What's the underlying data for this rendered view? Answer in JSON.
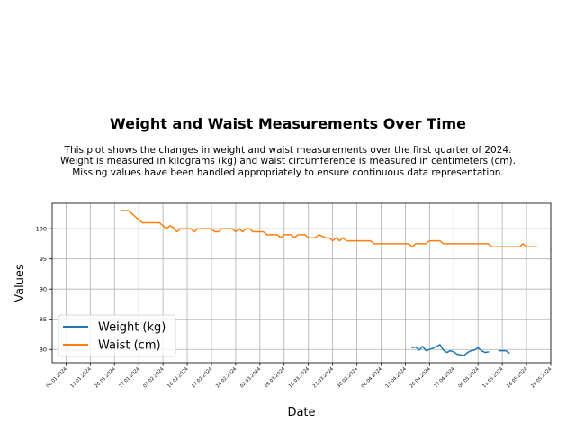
{
  "chart_data": {
    "type": "line",
    "title": "Weight and Waist Measurements Over Time",
    "subtitle_lines": [
      "This plot shows the changes in weight and waist measurements over the first quarter of 2024.",
      "Weight is measured in kilograms (kg) and waist circumference is measured in centimeters (cm).",
      "Missing values have been handled appropriately to ensure continuous data representation."
    ],
    "xlabel": "Date",
    "ylabel": "Values",
    "xlim": [
      "2024-01-02",
      "2024-05-25"
    ],
    "ylim": [
      77.8,
      104.2
    ],
    "x_ticks": [
      "06.01.2024",
      "13.01.2024",
      "20.01.2024",
      "27.01.2024",
      "03.02.2024",
      "10.02.2024",
      "17.02.2024",
      "24.02.2024",
      "02.03.2024",
      "09.03.2024",
      "16.03.2024",
      "23.03.2024",
      "30.03.2024",
      "06.04.2024",
      "13.04.2024",
      "20.04.2024",
      "27.04.2024",
      "04.05.2024",
      "11.05.2024",
      "18.05.2024",
      "25.05.2024"
    ],
    "y_ticks": [
      80,
      85,
      90,
      95,
      100
    ],
    "grid": true,
    "legend_position": "lower-left",
    "series": [
      {
        "name": "Weight (kg)",
        "color": "#1f77b4",
        "segments": [
          [
            {
              "x": "2024-04-15",
              "y": 80.3
            },
            {
              "x": "2024-04-16",
              "y": 80.4
            },
            {
              "x": "2024-04-17",
              "y": 79.9
            },
            {
              "x": "2024-04-18",
              "y": 80.5
            },
            {
              "x": "2024-04-19",
              "y": 79.8
            },
            {
              "x": "2024-04-21",
              "y": 80.2
            },
            {
              "x": "2024-04-23",
              "y": 80.8
            },
            {
              "x": "2024-04-24",
              "y": 79.9
            },
            {
              "x": "2024-04-25",
              "y": 79.5
            },
            {
              "x": "2024-04-26",
              "y": 79.8
            },
            {
              "x": "2024-04-27",
              "y": 79.6
            },
            {
              "x": "2024-04-28",
              "y": 79.2
            },
            {
              "x": "2024-04-30",
              "y": 79.0
            },
            {
              "x": "2024-05-01",
              "y": 79.5
            },
            {
              "x": "2024-05-02",
              "y": 79.8
            },
            {
              "x": "2024-05-03",
              "y": 79.9
            },
            {
              "x": "2024-05-04",
              "y": 80.3
            },
            {
              "x": "2024-05-05",
              "y": 79.8
            },
            {
              "x": "2024-05-06",
              "y": 79.5
            },
            {
              "x": "2024-05-07",
              "y": 79.6
            }
          ],
          [
            {
              "x": "2024-05-10",
              "y": 79.8
            },
            {
              "x": "2024-05-12",
              "y": 79.8
            },
            {
              "x": "2024-05-13",
              "y": 79.4
            }
          ]
        ]
      },
      {
        "name": "Waist (cm)",
        "color": "#ff7f0e",
        "segments": [
          [
            {
              "x": "2024-01-22",
              "y": 103
            },
            {
              "x": "2024-01-24",
              "y": 103
            },
            {
              "x": "2024-01-28",
              "y": 101
            },
            {
              "x": "2024-02-02",
              "y": 101
            },
            {
              "x": "2024-02-04",
              "y": 100
            },
            {
              "x": "2024-02-05",
              "y": 100.5
            },
            {
              "x": "2024-02-06",
              "y": 100.2
            },
            {
              "x": "2024-02-07",
              "y": 99.5
            },
            {
              "x": "2024-02-08",
              "y": 100
            },
            {
              "x": "2024-02-11",
              "y": 100
            },
            {
              "x": "2024-02-12",
              "y": 99.5
            },
            {
              "x": "2024-02-13",
              "y": 100
            },
            {
              "x": "2024-02-17",
              "y": 100
            },
            {
              "x": "2024-02-18",
              "y": 99.5
            },
            {
              "x": "2024-02-19",
              "y": 99.5
            },
            {
              "x": "2024-02-20",
              "y": 100
            },
            {
              "x": "2024-02-23",
              "y": 100
            },
            {
              "x": "2024-02-24",
              "y": 99.5
            },
            {
              "x": "2024-02-25",
              "y": 100
            },
            {
              "x": "2024-02-26",
              "y": 99.5
            },
            {
              "x": "2024-02-27",
              "y": 100
            },
            {
              "x": "2024-02-28",
              "y": 100
            },
            {
              "x": "2024-02-29",
              "y": 99.5
            },
            {
              "x": "2024-03-03",
              "y": 99.5
            },
            {
              "x": "2024-03-04",
              "y": 99
            },
            {
              "x": "2024-03-07",
              "y": 99
            },
            {
              "x": "2024-03-08",
              "y": 98.5
            },
            {
              "x": "2024-03-09",
              "y": 99
            },
            {
              "x": "2024-03-11",
              "y": 99
            },
            {
              "x": "2024-03-12",
              "y": 98.5
            },
            {
              "x": "2024-03-13",
              "y": 99
            },
            {
              "x": "2024-03-15",
              "y": 99
            },
            {
              "x": "2024-03-16",
              "y": 98.5
            },
            {
              "x": "2024-03-18",
              "y": 98.5
            },
            {
              "x": "2024-03-19",
              "y": 99
            },
            {
              "x": "2024-03-21",
              "y": 98.5
            },
            {
              "x": "2024-03-22",
              "y": 98.5
            },
            {
              "x": "2024-03-23",
              "y": 98
            },
            {
              "x": "2024-03-24",
              "y": 98.5
            },
            {
              "x": "2024-03-25",
              "y": 98
            },
            {
              "x": "2024-03-26",
              "y": 98.5
            },
            {
              "x": "2024-03-27",
              "y": 98
            },
            {
              "x": "2024-04-03",
              "y": 98
            },
            {
              "x": "2024-04-04",
              "y": 97.5
            },
            {
              "x": "2024-04-14",
              "y": 97.5
            },
            {
              "x": "2024-04-15",
              "y": 97
            },
            {
              "x": "2024-04-16",
              "y": 97.5
            },
            {
              "x": "2024-04-19",
              "y": 97.5
            },
            {
              "x": "2024-04-20",
              "y": 98
            },
            {
              "x": "2024-04-23",
              "y": 98
            },
            {
              "x": "2024-04-24",
              "y": 97.5
            },
            {
              "x": "2024-05-07",
              "y": 97.5
            },
            {
              "x": "2024-05-08",
              "y": 97
            },
            {
              "x": "2024-05-14",
              "y": 97
            },
            {
              "x": "2024-05-16",
              "y": 97
            },
            {
              "x": "2024-05-17",
              "y": 97.5
            },
            {
              "x": "2024-05-18",
              "y": 97
            },
            {
              "x": "2024-05-21",
              "y": 97
            }
          ],
          [
            {
              "x": "2024-05-26",
              "y": 96.5
            },
            {
              "x": "2024-05-30",
              "y": 96.5
            }
          ]
        ]
      }
    ]
  }
}
